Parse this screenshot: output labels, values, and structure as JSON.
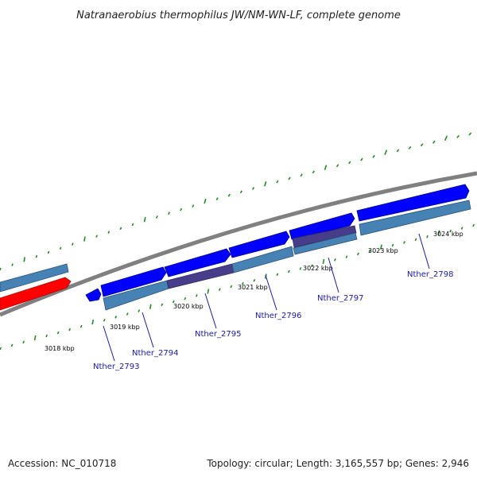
{
  "title": "Natranaerobius thermophilus JW/NM-WN-LF, complete genome",
  "accession": "Accession: NC_010718",
  "summary": "Topology: circular; Length: 3,165,557 bp; Genes: 2,946",
  "colors": {
    "backbone": "#808080",
    "cds_forward": "#0000ff",
    "cds_highlight": "#ff0000",
    "feature_bar": "#4682b4",
    "feature_bar_purple": "#483d8b",
    "tick": "#228b22",
    "gene_label": "#1a1aa6"
  },
  "ticks": [
    {
      "label": "3018 kbp"
    },
    {
      "label": "3019 kbp"
    },
    {
      "label": "3020 kbp"
    },
    {
      "label": "3021 kbp"
    },
    {
      "label": "3022 kbp"
    },
    {
      "label": "3023 kbp"
    },
    {
      "label": "3024 kbp"
    }
  ],
  "genes": [
    {
      "label": "Nther_2793"
    },
    {
      "label": "Nther_2794"
    },
    {
      "label": "Nther_2795"
    },
    {
      "label": "Nther_2796"
    },
    {
      "label": "Nther_2797"
    },
    {
      "label": "Nther_2798"
    }
  ]
}
